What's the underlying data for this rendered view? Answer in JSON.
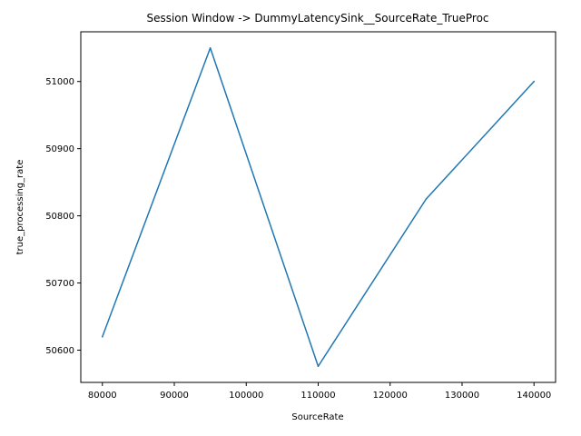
{
  "chart_data": {
    "type": "line",
    "title": "Session Window -> DummyLatencySink__SourceRate_TrueProc",
    "xlabel": "SourceRate",
    "ylabel": "true_processing_rate",
    "x": [
      80000,
      95000,
      110000,
      125000,
      140000
    ],
    "series": [
      {
        "values": [
          50620,
          51050,
          50576,
          50825,
          51000
        ]
      }
    ],
    "xlim": [
      77000,
      143000
    ],
    "ylim": [
      50552,
      51074
    ],
    "xticks": [
      80000,
      90000,
      100000,
      110000,
      120000,
      130000,
      140000
    ],
    "yticks": [
      50600,
      50700,
      50800,
      50900,
      51000
    ],
    "grid": false,
    "line_color": "#1f77b4"
  }
}
